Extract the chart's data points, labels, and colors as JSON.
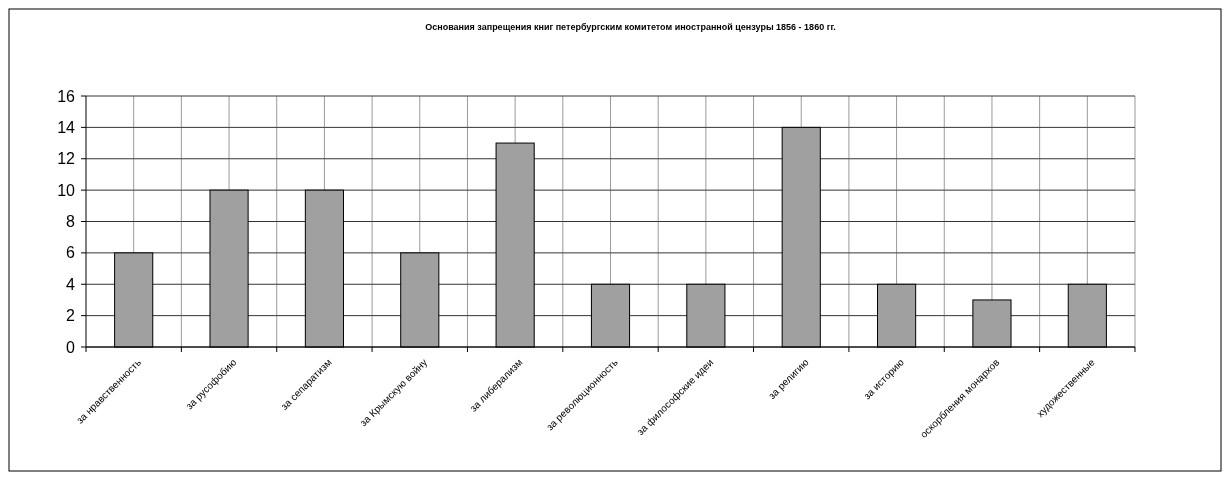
{
  "chart_data": {
    "type": "bar",
    "title": "Основания запрещения книг петербургским комитетом иностранной цензуры 1856 - 1860 гг.",
    "categories": [
      "за нравственность",
      "за русофобию",
      "за сепаратизм",
      "за Крымскую войну",
      "за либерализм",
      "за революционность",
      "за философские идеи",
      "за религию",
      "за историю",
      "оскорбления монархов",
      "художественные"
    ],
    "values": [
      6,
      10,
      10,
      6,
      13,
      4,
      4,
      14,
      4,
      3,
      4
    ],
    "color": "#a0a0a0",
    "ylim": [
      0,
      16
    ],
    "yticks": [
      0,
      2,
      4,
      6,
      8,
      10,
      12,
      14,
      16
    ],
    "grid": true
  }
}
